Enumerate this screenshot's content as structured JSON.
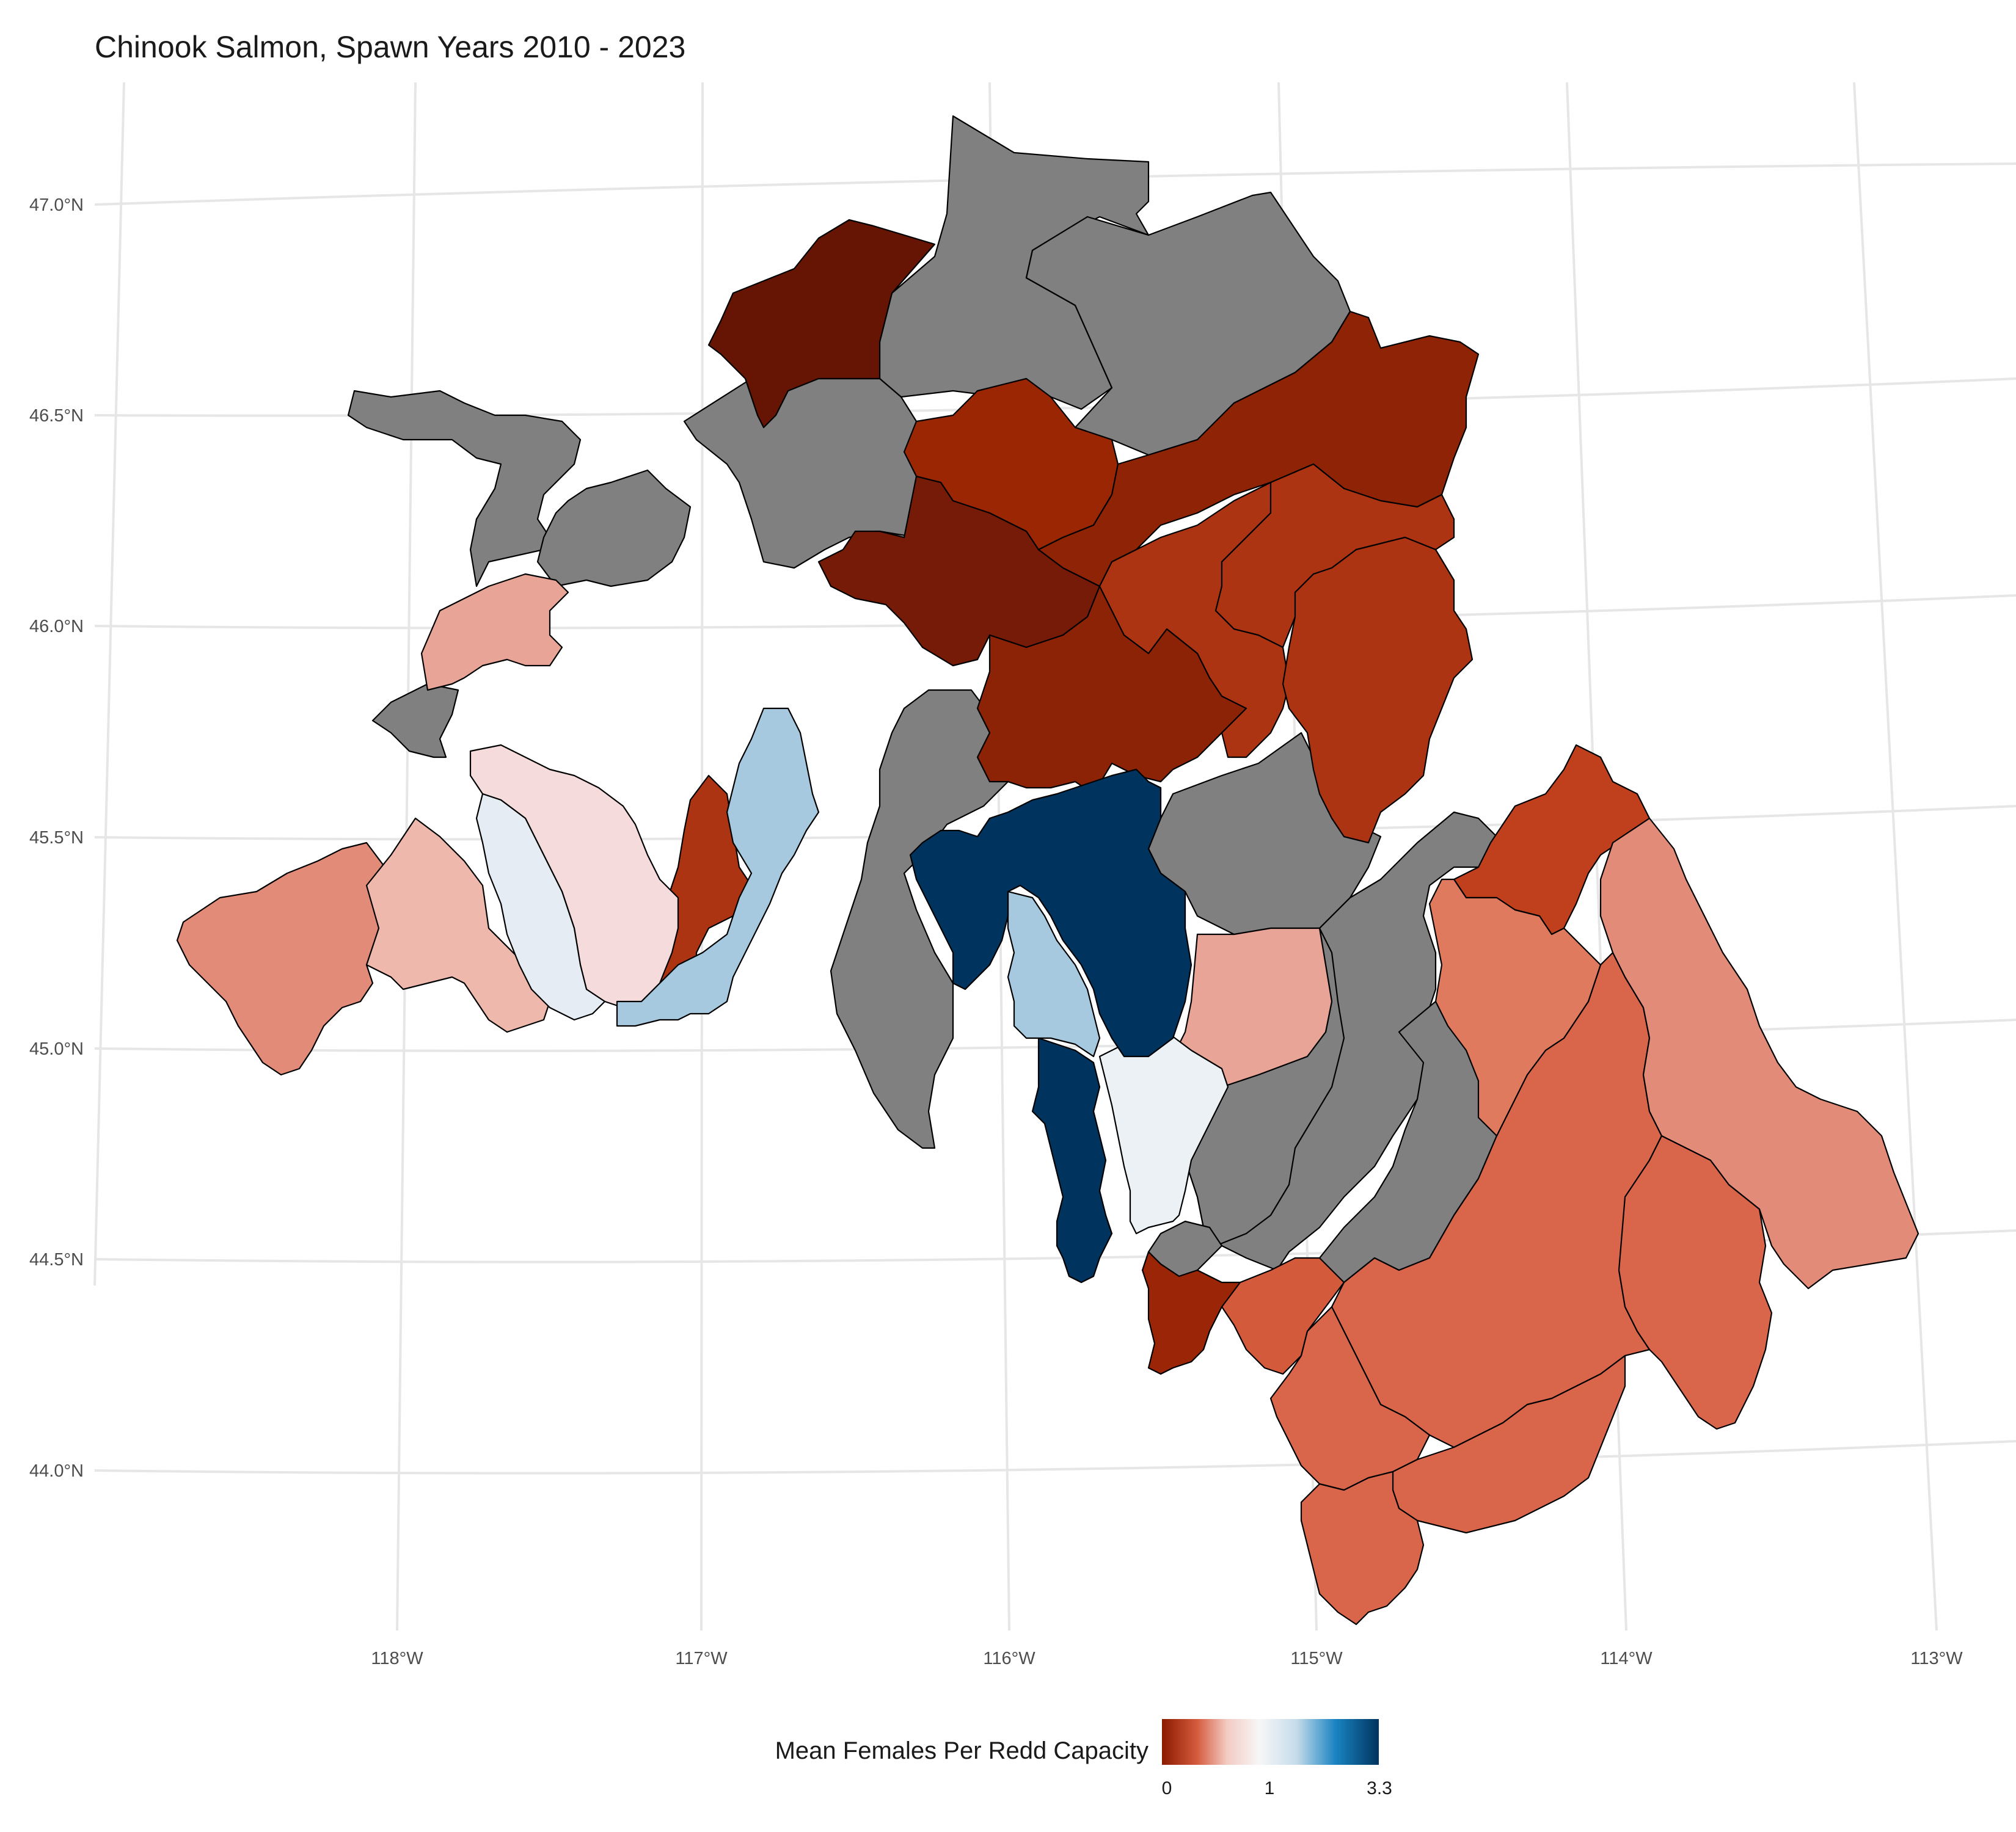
{
  "title": "Chinook Salmon, Spawn Years 2010 - 2023",
  "colors": {
    "no_data": "#808080",
    "grid": "#e6e6e6",
    "scale_low": "#8b1a00",
    "scale_mid": "#f7f7f7",
    "scale_high": "#00345e"
  },
  "axes": {
    "latitude_labels": [
      "47.0°N",
      "46.5°N",
      "46.0°N",
      "45.5°N",
      "45.0°N",
      "44.5°N",
      "44.0°N"
    ],
    "longitude_labels": [
      "118°W",
      "117°W",
      "116°W",
      "115°W",
      "114°W",
      "113°W"
    ]
  },
  "legend": {
    "title": "Mean Females Per Redd Capacity",
    "position": "bottom",
    "min": 0,
    "mid": 1,
    "max": 3.3,
    "tick_labels": [
      "0",
      "1",
      "3.3"
    ]
  }
}
